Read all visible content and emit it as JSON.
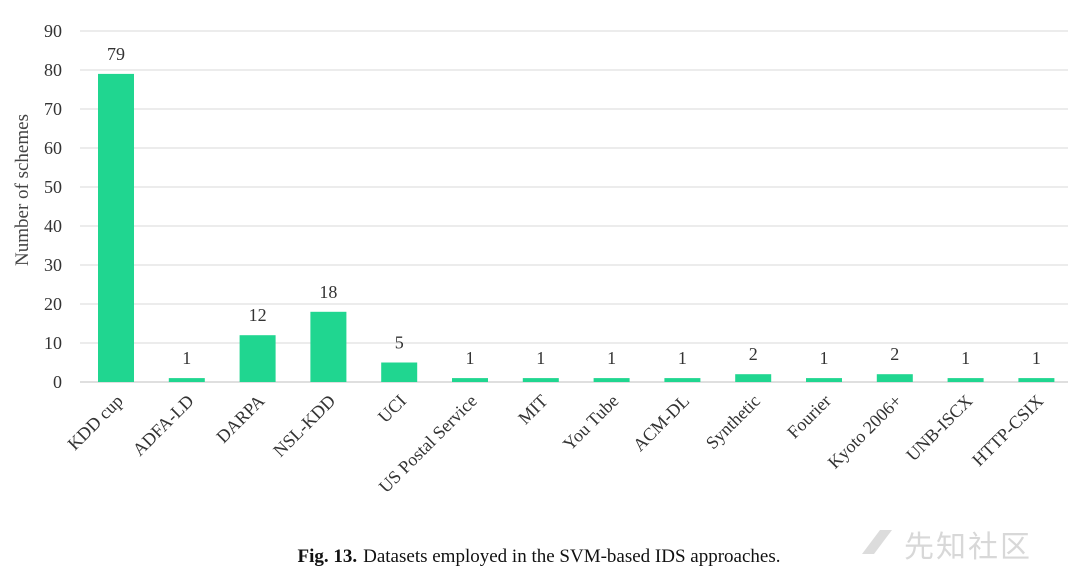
{
  "chart_data": {
    "type": "bar",
    "categories": [
      "KDD cup",
      "ADFA-LD",
      "DARPA",
      "NSL-KDD",
      "UCI",
      "US Postal Service",
      "MIT",
      "You Tube",
      "ACM-DL",
      "Synthetic",
      "Fourier",
      "Kyoto 2006+",
      "UNB-ISCX",
      "HTTP-CSIX"
    ],
    "values": [
      79,
      1,
      12,
      18,
      5,
      1,
      1,
      1,
      1,
      2,
      1,
      2,
      1,
      1
    ],
    "ylabel": "Number of schemes",
    "ylim": [
      0,
      90
    ],
    "yticks": [
      0,
      10,
      20,
      30,
      40,
      50,
      60,
      70,
      80,
      90
    ],
    "bar_color": "#20d690",
    "grid": true,
    "data_labels": true
  },
  "caption": {
    "label": "Fig. 13.",
    "text": "Datasets employed in the SVM-based IDS approaches."
  },
  "watermark": {
    "text": "先知社区",
    "icon": "watermark-logo-icon"
  }
}
